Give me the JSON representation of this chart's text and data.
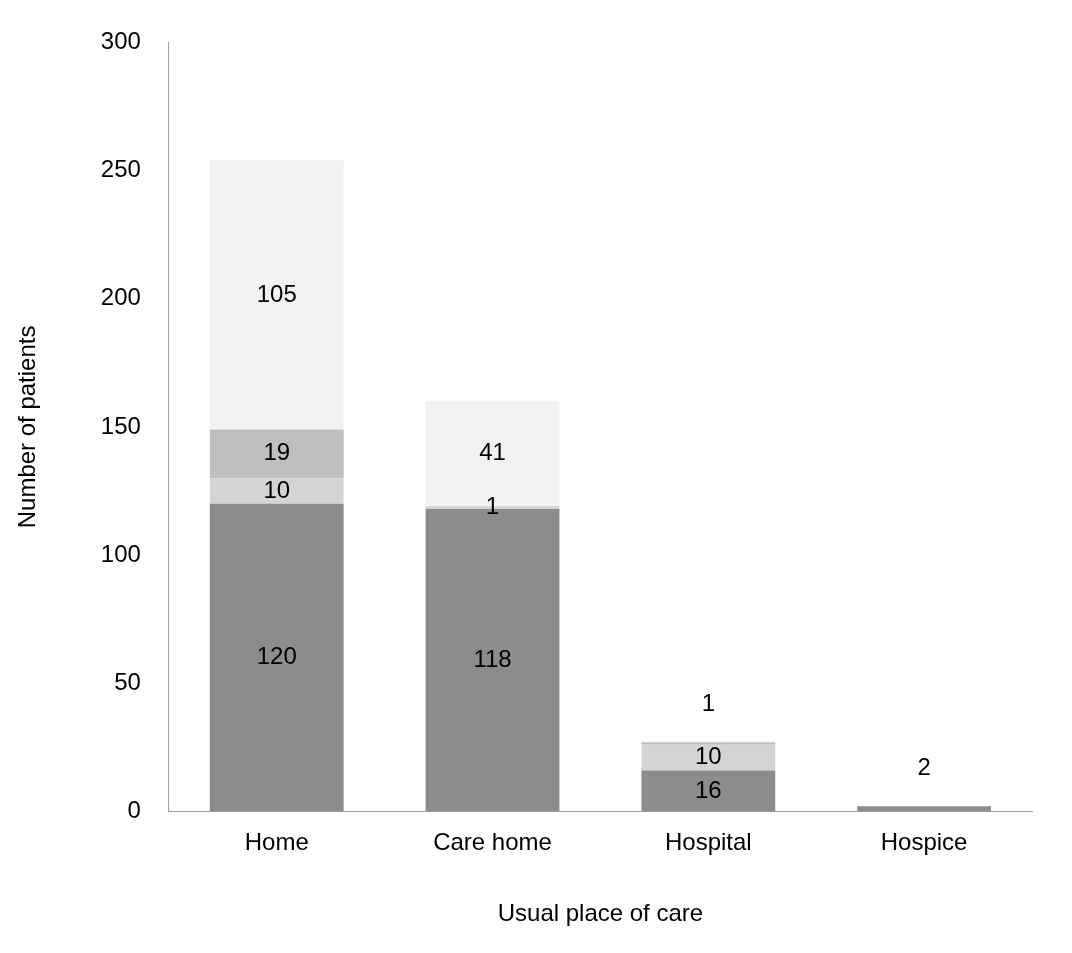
{
  "chart_data": {
    "type": "bar",
    "stacked": true,
    "xlabel": "Usual place of care",
    "ylabel": "Number of patients",
    "categories": [
      "Home",
      "Care home",
      "Hospital",
      "Hospice"
    ],
    "series": [
      {
        "color": "#8c8c8c",
        "values": [
          120,
          118,
          16,
          2
        ]
      },
      {
        "color": "#d4d4d4",
        "values": [
          10,
          1,
          10,
          null
        ]
      },
      {
        "color": "#bfbfbf",
        "values": [
          19,
          null,
          1,
          null
        ]
      },
      {
        "color": "#f2f2f2",
        "values": [
          105,
          41,
          null,
          null
        ]
      }
    ],
    "ylim": [
      0,
      300
    ],
    "yticks": [
      0,
      50,
      100,
      150,
      200,
      250,
      300
    ],
    "grid": false,
    "legend": false,
    "data_labels": true
  }
}
